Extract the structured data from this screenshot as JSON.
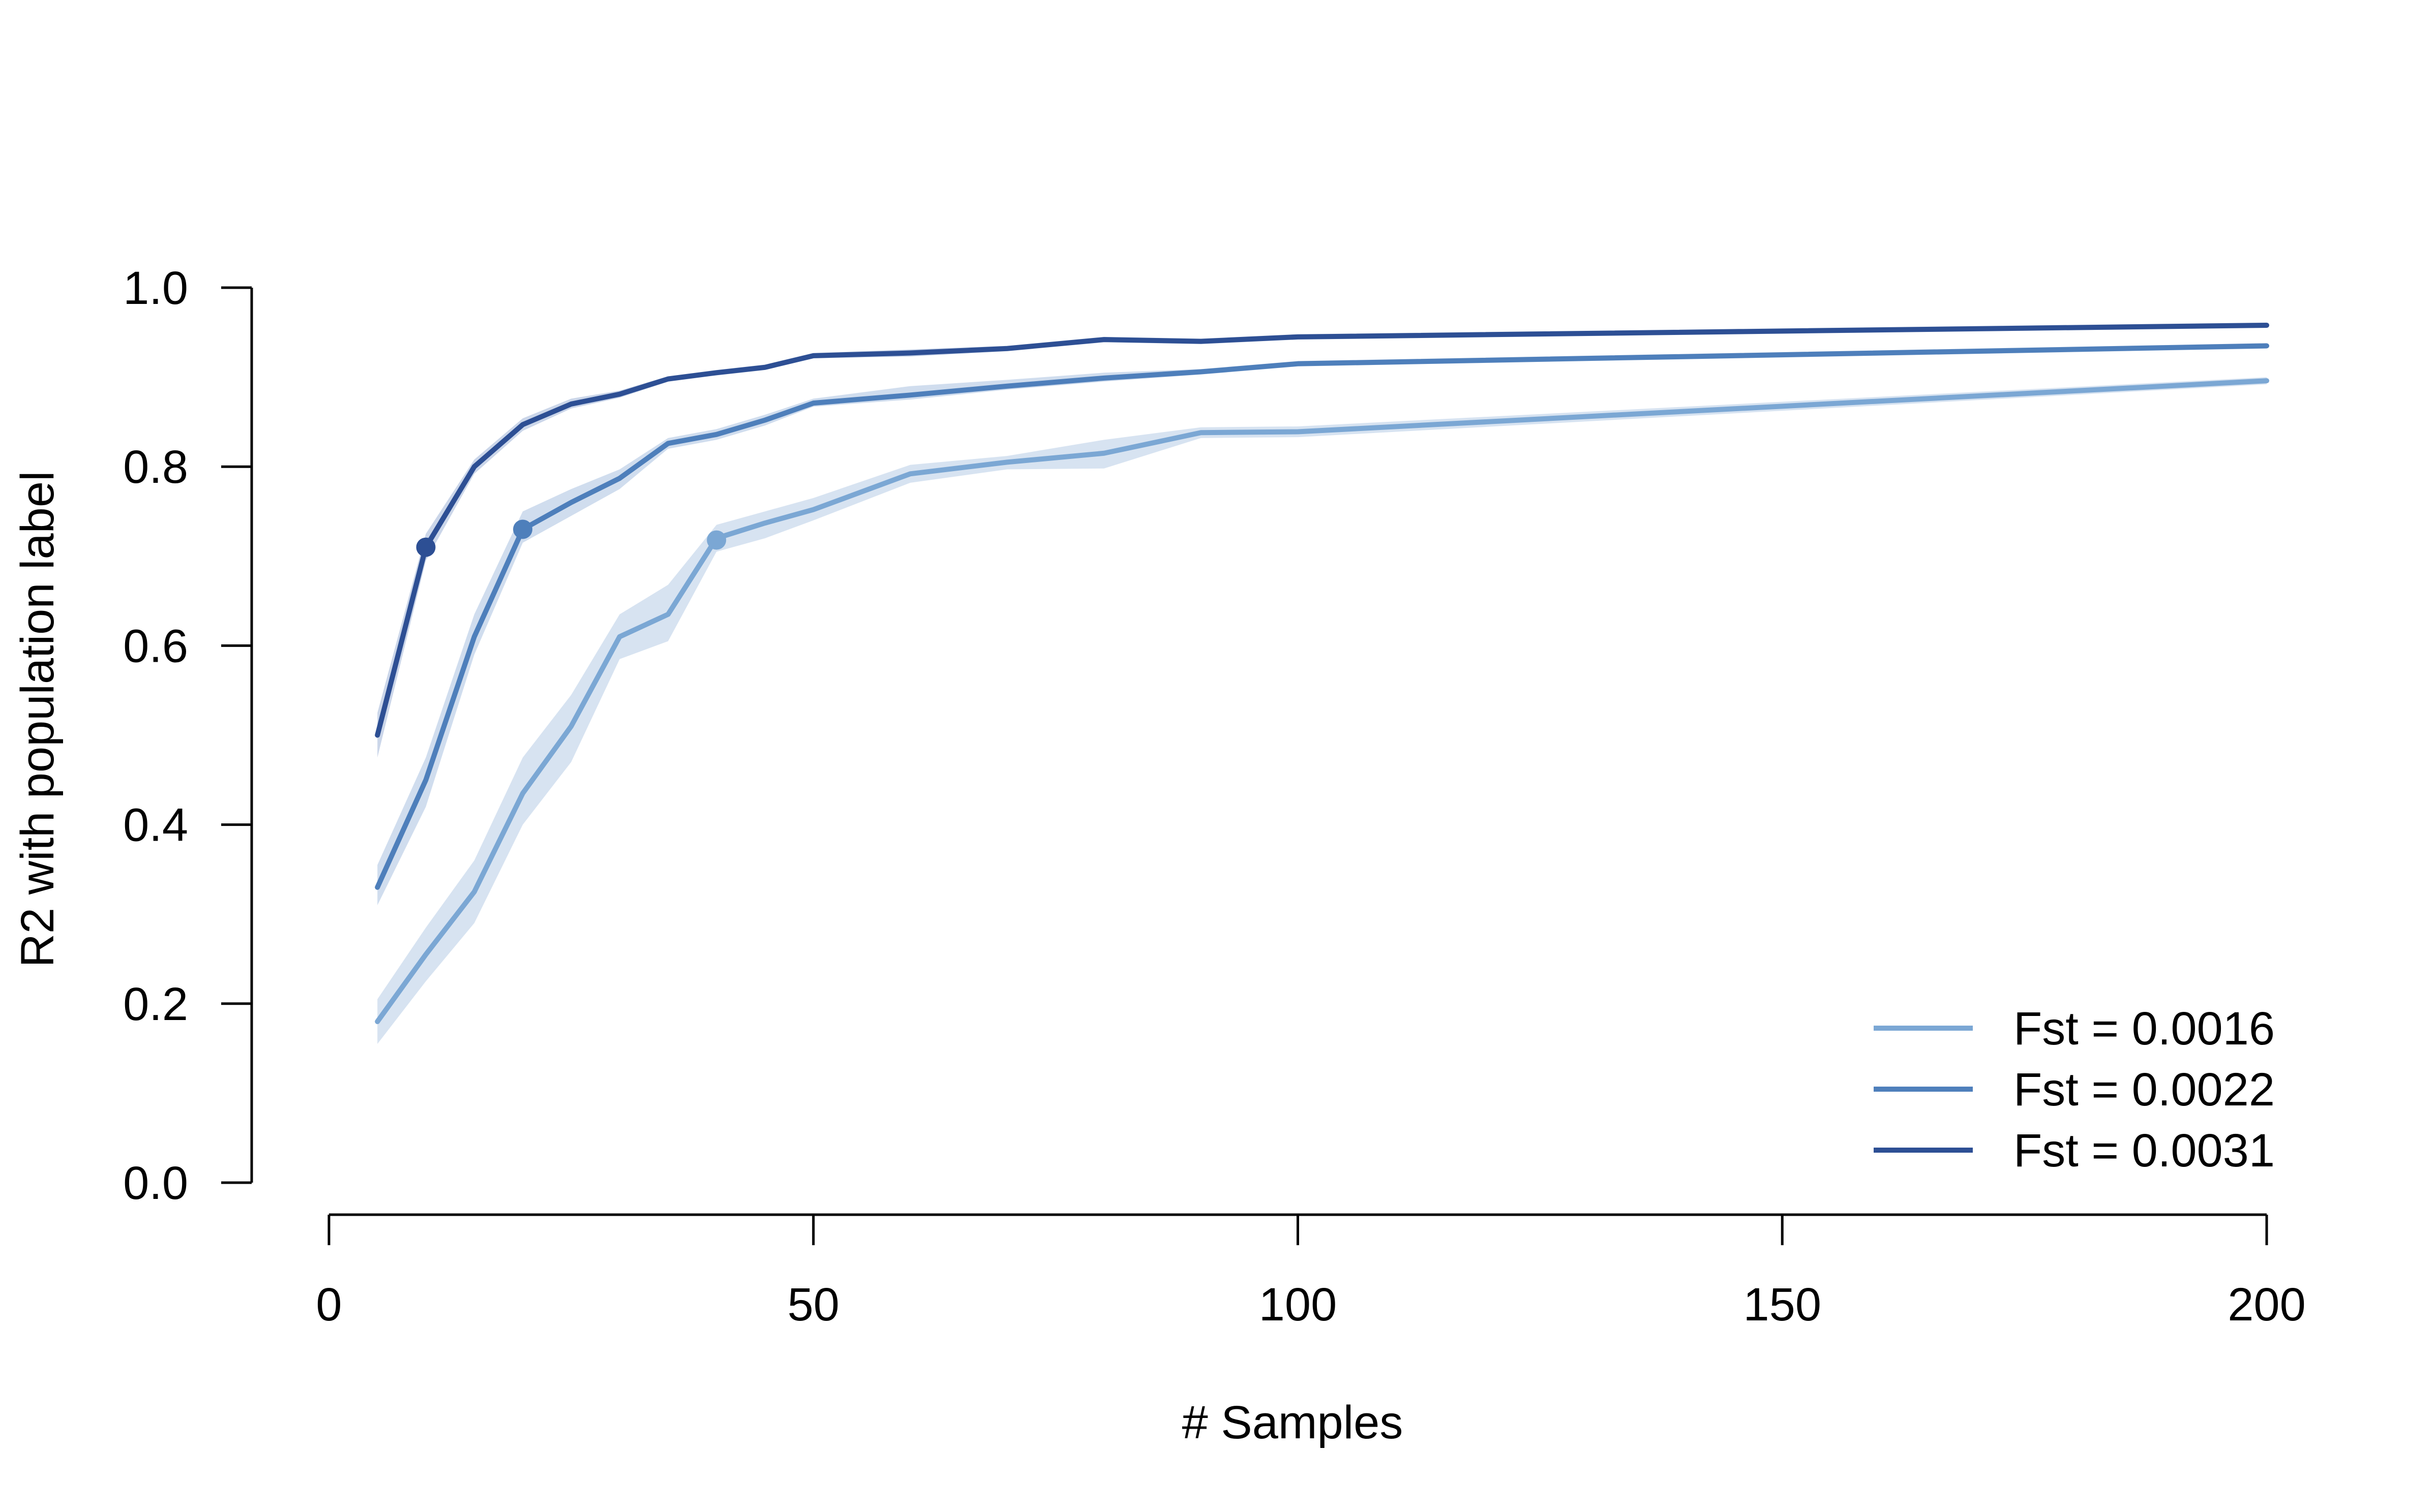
{
  "chart_data": {
    "type": "line",
    "xlabel": "# Samples",
    "ylabel": "R2 with population label",
    "xlim": [
      0,
      200
    ],
    "ylim": [
      0,
      1
    ],
    "x_ticks": [
      0,
      50,
      100,
      150,
      200
    ],
    "x_tick_labels": [
      "0",
      "50",
      "100",
      "150",
      "200"
    ],
    "y_ticks": [
      0,
      0.2,
      0.4,
      0.6,
      0.8,
      1.0
    ],
    "y_tick_labels": [
      "0.0",
      "0.2",
      "0.4",
      "0.6",
      "0.8",
      "1.0"
    ],
    "grid": false,
    "legend_position": "bottom-right",
    "series": [
      {
        "name": "Fst = 0.0016",
        "color": "#7ba7d4",
        "band_color": "#c9d9ec",
        "x": [
          5,
          10,
          15,
          20,
          25,
          30,
          35,
          40,
          45,
          50,
          60,
          70,
          80,
          90,
          100,
          200
        ],
        "y": [
          0.18,
          0.255,
          0.325,
          0.435,
          0.51,
          0.61,
          0.635,
          0.72,
          0.737,
          0.752,
          0.792,
          0.805,
          0.815,
          0.838,
          0.839,
          0.896
        ],
        "lower": [
          0.155,
          0.225,
          0.29,
          0.4,
          0.47,
          0.585,
          0.605,
          0.705,
          0.72,
          0.74,
          0.782,
          0.797,
          0.798,
          0.832,
          0.833,
          0.892
        ],
        "upper": [
          0.205,
          0.285,
          0.36,
          0.475,
          0.545,
          0.635,
          0.668,
          0.735,
          0.75,
          0.765,
          0.802,
          0.812,
          0.83,
          0.844,
          0.845,
          0.9
        ],
        "marker": {
          "x": 40,
          "y": 0.718
        }
      },
      {
        "name": "Fst = 0.0022",
        "color": "#4e7fbb",
        "band_color": "#c0d1e8",
        "x": [
          5,
          10,
          15,
          20,
          25,
          30,
          35,
          40,
          45,
          50,
          60,
          70,
          80,
          90,
          100,
          200
        ],
        "y": [
          0.33,
          0.45,
          0.61,
          0.73,
          0.76,
          0.787,
          0.826,
          0.836,
          0.852,
          0.871,
          0.88,
          0.89,
          0.899,
          0.906,
          0.915,
          0.935
        ],
        "lower": [
          0.31,
          0.42,
          0.59,
          0.715,
          0.745,
          0.775,
          0.82,
          0.83,
          0.846,
          0.867,
          0.875,
          0.886,
          0.895,
          0.903,
          0.912,
          0.932
        ],
        "upper": [
          0.355,
          0.475,
          0.635,
          0.75,
          0.775,
          0.797,
          0.832,
          0.842,
          0.858,
          0.876,
          0.89,
          0.897,
          0.905,
          0.909,
          0.918,
          0.938
        ],
        "marker": {
          "x": 20,
          "y": 0.73
        }
      },
      {
        "name": "Fst = 0.0031",
        "color": "#2d4f94",
        "band_color": "#b9c8e2",
        "x": [
          5,
          10,
          15,
          20,
          25,
          30,
          35,
          40,
          45,
          50,
          60,
          70,
          80,
          90,
          100,
          200
        ],
        "y": [
          0.5,
          0.71,
          0.8,
          0.847,
          0.87,
          0.881,
          0.898,
          0.905,
          0.911,
          0.924,
          0.927,
          0.932,
          0.942,
          0.94,
          0.945,
          0.958
        ],
        "lower": [
          0.475,
          0.695,
          0.792,
          0.84,
          0.865,
          0.877,
          0.895,
          0.902,
          0.908,
          0.921,
          0.923,
          0.929,
          0.939,
          0.937,
          0.942,
          0.955
        ],
        "upper": [
          0.525,
          0.725,
          0.808,
          0.854,
          0.876,
          0.885,
          0.901,
          0.908,
          0.914,
          0.927,
          0.931,
          0.935,
          0.945,
          0.943,
          0.948,
          0.961
        ],
        "marker": {
          "x": 10,
          "y": 0.71
        }
      }
    ]
  }
}
